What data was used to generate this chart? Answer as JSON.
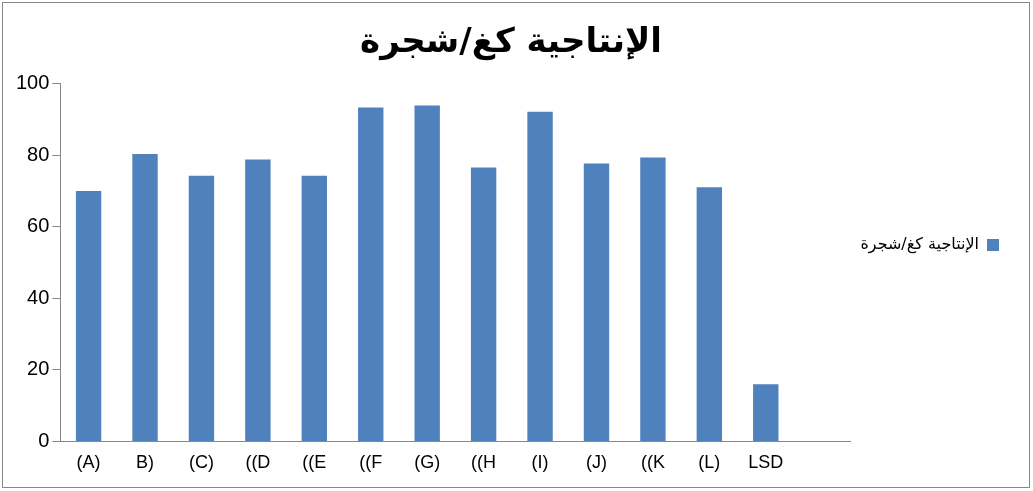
{
  "chart_data": {
    "type": "bar",
    "title": "الإنتاجية كغ/شجرة",
    "categories": [
      "(A)",
      "B)",
      "(C)",
      "((D",
      "((E",
      "((F",
      "(G)",
      "((H",
      "(I)",
      "(J)",
      "((K",
      "(L)",
      "LSD",
      null
    ],
    "series": [
      {
        "name": "الإنتاجية كغ/شجرة",
        "color": "#4f81bd",
        "values": [
          70,
          80.4,
          74.3,
          78.8,
          74.3,
          93.4,
          93.9,
          76.6,
          92.2,
          77.7,
          79.4,
          71.1,
          16,
          null
        ]
      }
    ],
    "ylim": [
      0,
      100
    ],
    "yticks": [
      0,
      20,
      40,
      60,
      80,
      100
    ],
    "grid": false,
    "legend": "right"
  }
}
